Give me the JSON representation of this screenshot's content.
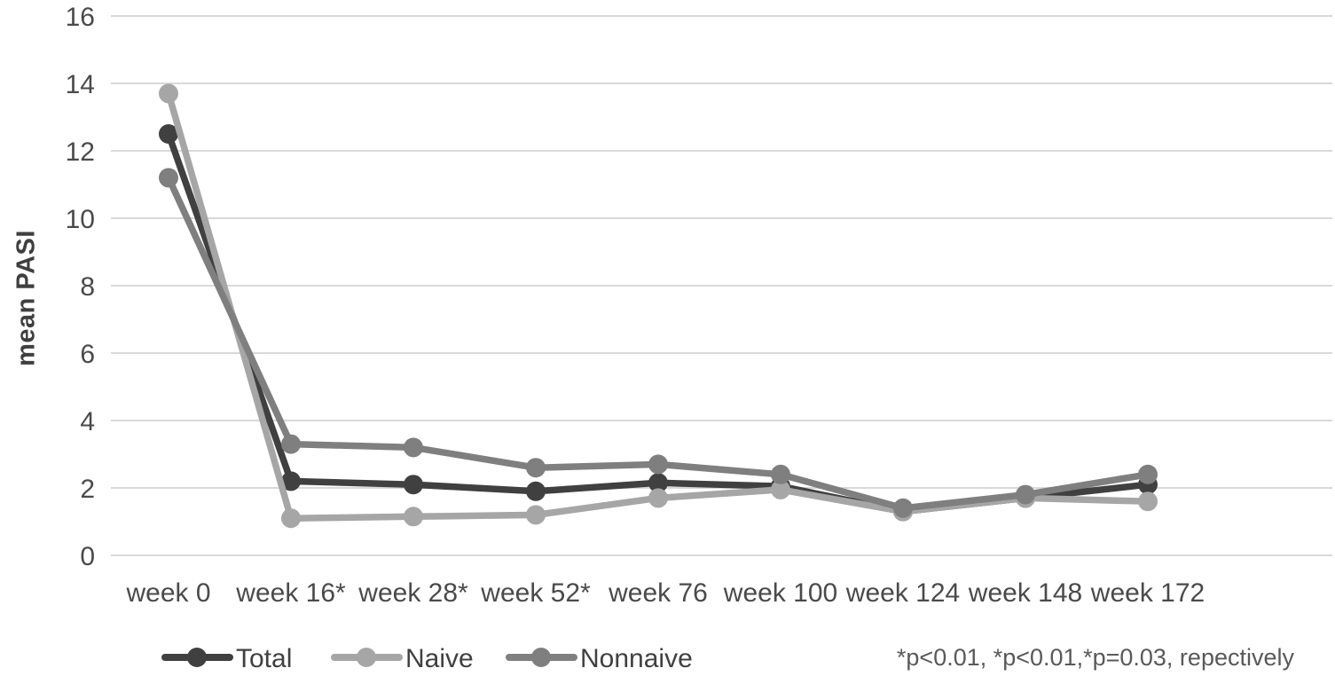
{
  "chart_data": {
    "type": "line",
    "title": "",
    "xlabel": "",
    "ylabel": "mean PASI",
    "categories": [
      "week 0",
      "week 16*",
      "week 28*",
      "week 52*",
      "week 76",
      "week 100",
      "week 124",
      "week 148",
      "week 172"
    ],
    "series": [
      {
        "name": "Total",
        "color": "#404040",
        "values": [
          12.5,
          2.2,
          2.1,
          1.9,
          2.15,
          2.05,
          1.3,
          1.7,
          2.1
        ]
      },
      {
        "name": "Naive",
        "color": "#a6a6a6",
        "values": [
          13.7,
          1.1,
          1.15,
          1.2,
          1.7,
          1.95,
          1.3,
          1.7,
          1.6
        ]
      },
      {
        "name": "Nonnaive",
        "color": "#7f7f7f",
        "values": [
          11.2,
          3.3,
          3.2,
          2.6,
          2.7,
          2.4,
          1.4,
          1.8,
          2.4
        ]
      }
    ],
    "ylim": [
      0,
      16
    ],
    "ytick_step": 2,
    "yticks": [
      "0",
      "2",
      "4",
      "6",
      "8",
      "10",
      "12",
      "14",
      "16"
    ],
    "grid": true,
    "gridline_color": "#d9d9d9",
    "tick_label_color": "#4a4a4a",
    "legend_text_color": "#404040",
    "legend_position": "bottom",
    "annotation": "*p<0.01, *p<0.01,*p=0.03, repectively"
  }
}
